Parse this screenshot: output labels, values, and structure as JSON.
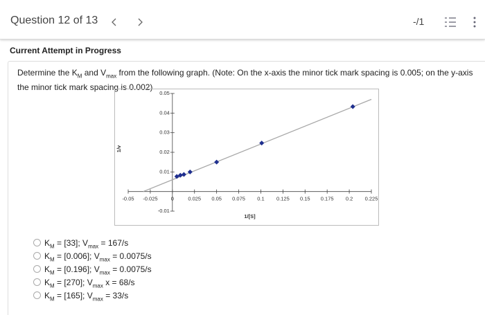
{
  "header": {
    "title": "Question 12 of 13",
    "score": "-/1"
  },
  "status": "Current Attempt in Progress",
  "question": {
    "parts": [
      "Determine the K",
      "M",
      " and V",
      "max",
      " from the following graph. (Note: On the x-axis the minor tick mark spacing is 0.005; on the y-axis the minor tick mark spacing is 0.002)"
    ]
  },
  "chart_data": {
    "type": "scatter",
    "xlabel": "1/[S]",
    "ylabel": "1/v",
    "x": [
      0.005,
      0.009,
      0.013,
      0.02,
      0.05,
      0.101,
      0.204
    ],
    "values": [
      0.0077,
      0.0083,
      0.0087,
      0.01,
      0.015,
      0.0247,
      0.0433
    ],
    "color": "#1f2f8f",
    "fit": {
      "x": [
        -0.033,
        0.225
      ],
      "values": [
        0,
        0.047
      ],
      "color": "#a8a8a8"
    },
    "xlim": [
      -0.05,
      0.225
    ],
    "ylim": [
      -0.01,
      0.05
    ],
    "xticks": [
      -0.05,
      -0.025,
      0,
      0.025,
      0.05,
      0.075,
      0.1,
      0.125,
      0.15,
      0.175,
      0.2,
      0.225
    ],
    "yticks": [
      -0.01,
      0.01,
      0.02,
      0.03,
      0.04,
      0.05
    ]
  },
  "options": [
    {
      "parts": [
        "K",
        "M",
        " = [33]; V",
        "max",
        " = 167/s"
      ]
    },
    {
      "parts": [
        "K",
        "M",
        " = [0.006]; V",
        "max",
        " = 0.0075/s"
      ]
    },
    {
      "parts": [
        "K",
        "M",
        " = [0.196]; V",
        "max",
        " = 0.0075/s"
      ]
    },
    {
      "parts": [
        "K",
        "M",
        " = [270]; V",
        "max",
        " x = 68/s"
      ]
    },
    {
      "parts": [
        "K",
        "M",
        " = [165]; V",
        "max",
        " = 33/s"
      ]
    }
  ]
}
